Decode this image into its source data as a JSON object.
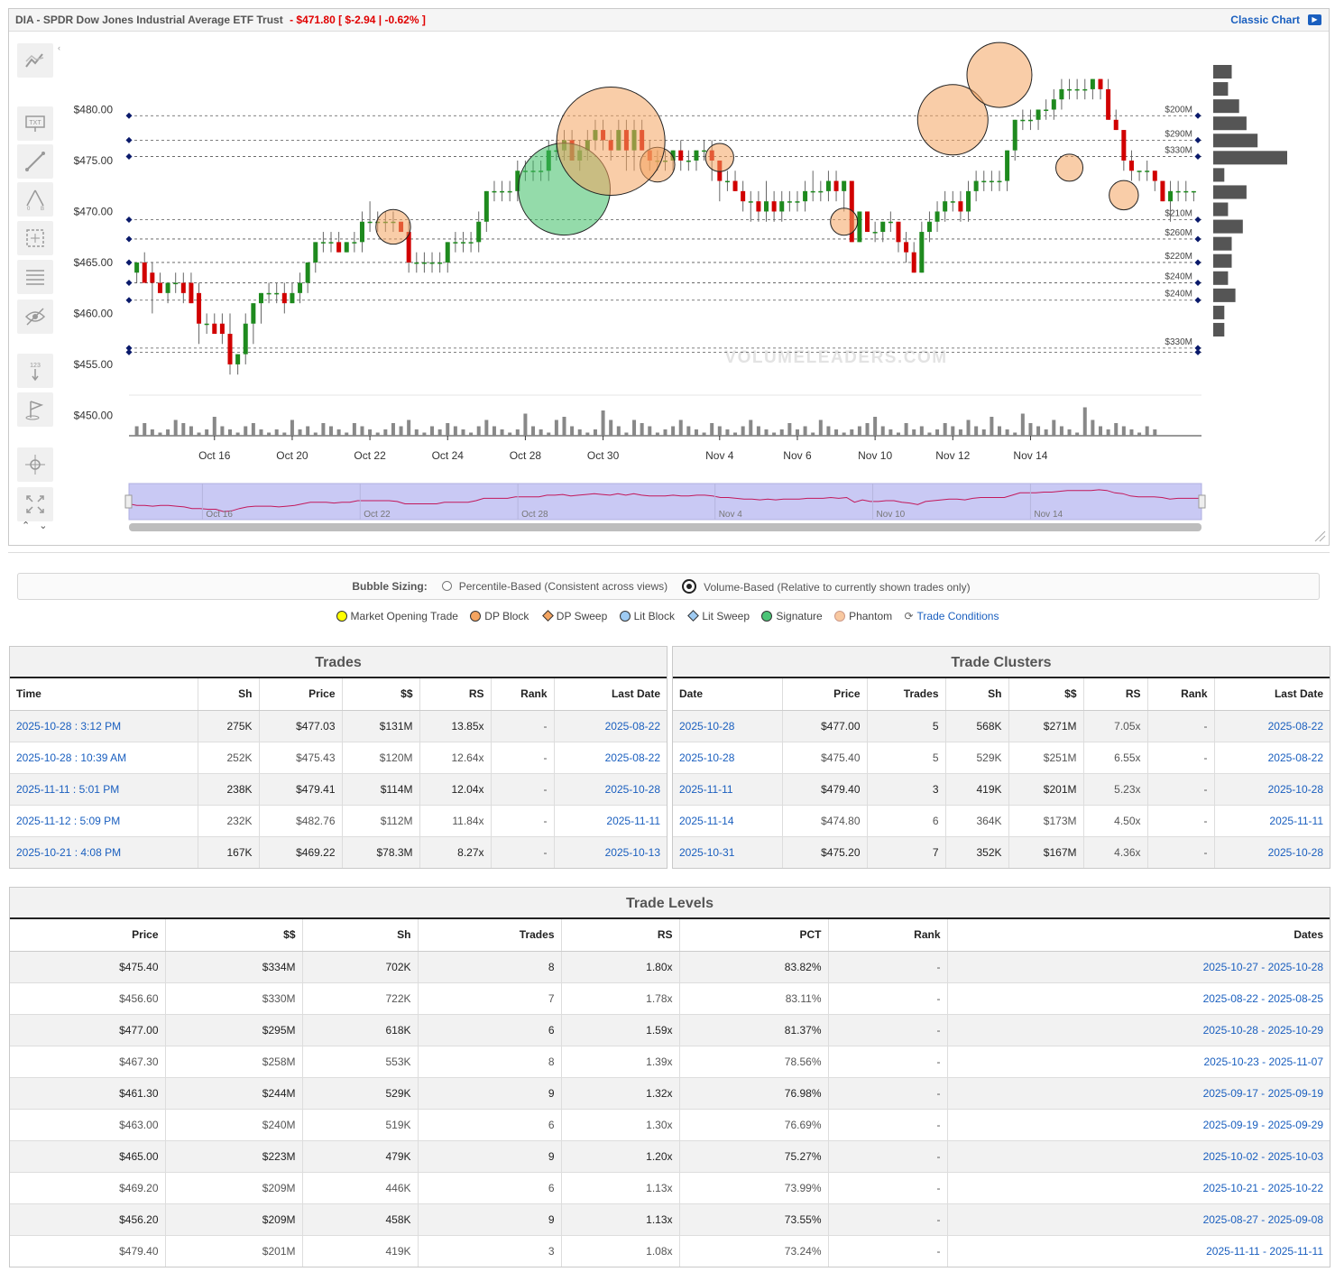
{
  "header": {
    "ticker_text": "DIA - SPDR Dow Jones Industrial Average ETF Trust",
    "quote_text": "- $471.80 [ $-2.94 | -0.62% ]",
    "classic_chart_label": "Classic Chart"
  },
  "chart_data": {
    "type": "candlestick",
    "ylim": [
      448,
      485
    ],
    "y_ticks": [
      "$480.00",
      "$475.00",
      "$470.00",
      "$465.00",
      "$460.00",
      "$455.00",
      "$450.00"
    ],
    "y_tick_values": [
      480,
      475,
      470,
      465,
      460,
      455,
      450
    ],
    "x_tick_labels": [
      "Oct 16",
      "Oct 20",
      "Oct 22",
      "Oct 24",
      "Oct 28",
      "Oct 30",
      "Nov 4",
      "Nov 6",
      "Nov 10",
      "Nov 12",
      "Nov 14"
    ],
    "x_tick_index": [
      10,
      20,
      30,
      40,
      50,
      60,
      75,
      85,
      95,
      105,
      115
    ],
    "candles": [
      [
        464,
        465,
        463,
        465
      ],
      [
        465,
        466,
        463,
        463
      ],
      [
        464,
        465,
        460,
        463
      ],
      [
        463,
        464,
        462,
        462
      ],
      [
        462,
        463,
        461,
        463
      ],
      [
        463,
        464,
        462,
        463
      ],
      [
        463,
        464,
        461,
        462
      ],
      [
        463,
        464,
        461,
        461
      ],
      [
        462,
        463,
        457,
        459
      ],
      [
        459,
        460,
        458,
        459
      ],
      [
        459,
        460,
        458,
        458
      ],
      [
        459,
        460,
        457,
        458
      ],
      [
        458,
        460,
        454,
        455
      ],
      [
        455,
        456,
        454,
        456
      ],
      [
        456,
        460,
        455,
        459
      ],
      [
        459,
        461,
        457,
        461
      ],
      [
        461,
        462,
        459,
        462
      ],
      [
        462,
        463,
        461,
        462
      ],
      [
        462,
        463,
        461,
        462
      ],
      [
        462,
        463,
        460,
        461
      ],
      [
        461,
        463,
        461,
        462
      ],
      [
        462,
        464,
        461,
        463
      ],
      [
        463,
        465,
        462,
        465
      ],
      [
        465,
        467,
        464,
        467
      ],
      [
        467,
        468,
        466,
        467
      ],
      [
        467,
        468,
        466,
        467
      ],
      [
        467,
        468,
        466,
        466
      ],
      [
        466,
        467,
        466,
        467
      ],
      [
        467,
        468,
        466,
        467
      ],
      [
        467,
        470,
        466,
        469
      ],
      [
        469,
        471,
        468,
        469
      ],
      [
        469,
        470,
        468,
        469
      ],
      [
        469,
        470,
        468,
        469
      ],
      [
        469,
        470,
        468,
        469
      ],
      [
        469,
        469,
        468,
        468
      ],
      [
        468,
        469,
        464,
        465
      ],
      [
        465,
        466,
        464,
        465
      ],
      [
        465,
        466,
        464,
        465
      ],
      [
        465,
        466,
        464,
        465
      ],
      [
        465,
        466,
        464,
        465
      ],
      [
        465,
        467,
        464,
        467
      ],
      [
        467,
        468,
        466,
        467
      ],
      [
        467,
        468,
        466,
        467
      ],
      [
        467,
        468,
        466,
        467
      ],
      [
        467,
        470,
        466,
        469
      ],
      [
        469,
        472,
        468,
        472
      ],
      [
        472,
        473,
        471,
        472
      ],
      [
        472,
        473,
        471,
        472
      ],
      [
        472,
        473,
        471,
        472
      ],
      [
        472,
        475,
        471,
        474
      ],
      [
        474,
        475,
        473,
        474
      ],
      [
        474,
        475,
        473,
        474
      ],
      [
        474,
        475,
        473,
        474
      ],
      [
        474,
        477,
        473,
        476
      ],
      [
        476,
        477,
        475,
        476
      ],
      [
        476,
        478,
        475,
        477
      ],
      [
        477,
        478,
        475,
        475
      ],
      [
        475,
        477,
        474,
        476
      ],
      [
        476,
        478,
        475,
        477
      ],
      [
        477,
        479,
        476,
        478
      ],
      [
        478,
        479,
        476,
        477
      ],
      [
        477,
        478,
        475,
        476
      ],
      [
        476,
        479,
        476,
        478
      ],
      [
        478,
        479,
        474,
        476
      ],
      [
        476,
        479,
        474,
        478
      ],
      [
        478,
        479,
        476,
        476
      ],
      [
        476,
        477,
        474,
        475
      ],
      [
        475,
        476,
        474,
        475
      ],
      [
        475,
        476,
        474,
        475
      ],
      [
        475,
        476,
        474,
        476
      ],
      [
        476,
        477,
        474,
        475
      ],
      [
        475,
        476,
        474,
        475
      ],
      [
        475,
        476,
        474,
        476
      ],
      [
        476,
        477,
        475,
        476
      ],
      [
        476,
        477,
        473,
        475
      ],
      [
        475,
        475,
        471,
        473
      ],
      [
        473,
        474,
        472,
        473
      ],
      [
        473,
        474,
        472,
        472
      ],
      [
        472,
        473,
        470,
        471
      ],
      [
        471,
        472,
        469,
        471
      ],
      [
        471,
        472,
        469,
        470
      ],
      [
        470,
        473,
        469,
        471
      ],
      [
        471,
        472,
        469,
        470
      ],
      [
        470,
        472,
        469,
        471
      ],
      [
        471,
        472,
        470,
        471
      ],
      [
        471,
        472,
        470,
        471
      ],
      [
        471,
        473,
        470,
        472
      ],
      [
        472,
        474,
        471,
        472
      ],
      [
        472,
        473,
        471,
        472
      ],
      [
        472,
        474,
        471,
        473
      ],
      [
        473,
        474,
        471,
        472
      ],
      [
        472,
        473,
        470,
        473
      ],
      [
        473,
        473,
        467,
        467
      ],
      [
        467,
        470,
        467,
        470
      ],
      [
        470,
        470,
        468,
        468
      ],
      [
        468,
        469,
        467,
        468
      ],
      [
        468,
        469,
        467,
        469
      ],
      [
        469,
        470,
        468,
        469
      ],
      [
        469,
        469,
        466,
        467
      ],
      [
        467,
        468,
        465,
        466
      ],
      [
        466,
        467,
        464,
        464
      ],
      [
        464,
        469,
        464,
        468
      ],
      [
        468,
        470,
        467,
        469
      ],
      [
        469,
        471,
        468,
        470
      ],
      [
        470,
        472,
        469,
        471
      ],
      [
        471,
        472,
        470,
        471
      ],
      [
        471,
        472,
        469,
        470
      ],
      [
        470,
        473,
        469,
        472
      ],
      [
        472,
        474,
        471,
        473
      ],
      [
        473,
        474,
        472,
        473
      ],
      [
        473,
        474,
        472,
        473
      ],
      [
        473,
        474,
        472,
        473
      ],
      [
        473,
        476,
        472,
        476
      ],
      [
        476,
        479,
        475,
        479
      ],
      [
        479,
        480,
        478,
        479
      ],
      [
        479,
        480,
        478,
        479
      ],
      [
        479,
        480,
        478,
        480
      ],
      [
        480,
        481,
        479,
        480
      ],
      [
        480,
        482,
        479,
        481
      ],
      [
        481,
        483,
        480,
        482
      ],
      [
        482,
        483,
        481,
        482
      ],
      [
        482,
        483,
        481,
        482
      ],
      [
        482,
        483,
        481,
        482
      ],
      [
        482,
        483,
        481,
        483
      ],
      [
        483,
        483,
        481,
        482
      ],
      [
        482,
        483,
        479,
        479
      ],
      [
        479,
        480,
        478,
        478
      ],
      [
        478,
        478,
        474,
        475
      ],
      [
        475,
        476,
        473,
        474
      ],
      [
        474,
        474,
        473,
        474
      ],
      [
        474,
        475,
        473,
        474
      ],
      [
        474,
        474,
        472,
        473
      ],
      [
        473,
        473,
        471,
        471
      ],
      [
        471,
        473,
        469,
        472
      ],
      [
        472,
        473,
        471,
        472
      ],
      [
        472,
        473,
        471,
        472
      ],
      [
        472,
        472,
        471,
        472
      ]
    ],
    "volume": [
      0.3,
      0.4,
      0.2,
      0.1,
      0.2,
      0.5,
      0.4,
      0.3,
      0.1,
      0.2,
      0.6,
      0.3,
      0.2,
      0.1,
      0.3,
      0.4,
      0.2,
      0.1,
      0.2,
      0.1,
      0.5,
      0.2,
      0.3,
      0.1,
      0.4,
      0.3,
      0.2,
      0.1,
      0.4,
      0.3,
      0.2,
      0.1,
      0.2,
      0.4,
      0.3,
      0.5,
      0.2,
      0.1,
      0.3,
      0.2,
      0.4,
      0.3,
      0.2,
      0.1,
      0.3,
      0.5,
      0.3,
      0.2,
      0.1,
      0.2,
      0.7,
      0.3,
      0.2,
      0.1,
      0.5,
      0.6,
      0.3,
      0.2,
      0.1,
      0.2,
      0.8,
      0.5,
      0.3,
      0.1,
      0.5,
      0.4,
      0.3,
      0.1,
      0.2,
      0.3,
      0.5,
      0.3,
      0.2,
      0.1,
      0.4,
      0.3,
      0.2,
      0.1,
      0.3,
      0.5,
      0.3,
      0.2,
      0.1,
      0.2,
      0.4,
      0.2,
      0.3,
      0.1,
      0.5,
      0.3,
      0.2,
      0.1,
      0.2,
      0.3,
      0.4,
      0.6,
      0.3,
      0.2,
      0.1,
      0.4,
      0.2,
      0.3,
      0.1,
      0.2,
      0.4,
      0.3,
      0.2,
      0.5,
      0.3,
      0.2,
      0.6,
      0.3,
      0.2,
      0.1,
      0.7,
      0.4,
      0.3,
      0.2,
      0.5,
      0.3,
      0.2,
      0.1,
      0.9,
      0.5,
      0.3,
      0.2,
      0.4,
      0.3,
      0.2,
      0.1,
      0.3,
      0.2
    ],
    "levels": [
      {
        "price": 479.4,
        "label": "$200M"
      },
      {
        "price": 477.0,
        "label": "$290M"
      },
      {
        "price": 475.4,
        "label": "$330M"
      },
      {
        "price": 469.2,
        "label": "$210M"
      },
      {
        "price": 467.3,
        "label": "$260M"
      },
      {
        "price": 465.0,
        "label": "$220M"
      },
      {
        "price": 463.0,
        "label": "$240M"
      },
      {
        "price": 461.3,
        "label": "$240M"
      },
      {
        "price": 456.6,
        "label": "$330M"
      },
      {
        "price": 456.2,
        "label": ""
      }
    ],
    "bubbles": [
      {
        "index": 33,
        "price": 468.5,
        "size": 0.32,
        "kind": "dp-block"
      },
      {
        "index": 67,
        "price": 474.6,
        "size": 0.32,
        "kind": "dp-block"
      },
      {
        "index": 75,
        "price": 475.3,
        "size": 0.26,
        "kind": "dp-block"
      },
      {
        "index": 55,
        "price": 472.2,
        "size": 0.85,
        "kind": "signature"
      },
      {
        "index": 61,
        "price": 476.9,
        "size": 1.0,
        "kind": "dp-block"
      },
      {
        "index": 105,
        "price": 479.0,
        "size": 0.65,
        "kind": "dp-block"
      },
      {
        "index": 111,
        "price": 483.4,
        "size": 0.6,
        "kind": "dp-block"
      },
      {
        "index": 91,
        "price": 469.0,
        "size": 0.25,
        "kind": "dp-block"
      },
      {
        "index": 120,
        "price": 474.3,
        "size": 0.25,
        "kind": "dp-block"
      },
      {
        "index": 127,
        "price": 471.6,
        "size": 0.27,
        "kind": "dp-block"
      }
    ],
    "volume_profile": [
      0.25,
      0.2,
      0.35,
      0.45,
      0.6,
      1.0,
      0.15,
      0.45,
      0.2,
      0.4,
      0.25,
      0.25,
      0.2,
      0.3,
      0.15,
      0.15
    ],
    "navigator_labels": [
      "Oct 16",
      "Oct 22",
      "Oct 28",
      "Nov 4",
      "Nov 10",
      "Nov 14"
    ],
    "watermark": "VOLUMELEADERS.COM"
  },
  "bubble_sizing": {
    "label": "Bubble Sizing:",
    "option1": "Percentile-Based (Consistent across views)",
    "option2": "Volume-Based (Relative to currently shown trades only)"
  },
  "legend": {
    "market_open": "Market Opening Trade",
    "dp_block": "DP Block",
    "dp_sweep": "DP Sweep",
    "lit_block": "Lit Block",
    "lit_sweep": "Lit Sweep",
    "signature": "Signature",
    "phantom": "Phantom",
    "trade_conditions": "Trade Conditions",
    "colors": {
      "market_open": "#ffff00",
      "dp_block": "#f4a460",
      "dp_sweep": "#f4a460",
      "lit_block": "#9ecbf3",
      "lit_sweep": "#9ecbf3",
      "signature": "#4cc477",
      "phantom": "#f8c8a0"
    }
  },
  "trades": {
    "title": "Trades",
    "headers": [
      "Time",
      "Sh",
      "Price",
      "$$",
      "RS",
      "Rank",
      "Last Date"
    ],
    "rows": [
      [
        "2025-10-28 : 3:12 PM",
        "275K",
        "$477.03",
        "$131M",
        "13.85x",
        "-",
        "2025-08-22"
      ],
      [
        "2025-10-28 : 10:39 AM",
        "252K",
        "$475.43",
        "$120M",
        "12.64x",
        "-",
        "2025-08-22"
      ],
      [
        "2025-11-11 : 5:01 PM",
        "238K",
        "$479.41",
        "$114M",
        "12.04x",
        "-",
        "2025-10-28"
      ],
      [
        "2025-11-12 : 5:09 PM",
        "232K",
        "$482.76",
        "$112M",
        "11.84x",
        "-",
        "2025-11-11"
      ],
      [
        "2025-10-21 : 4:08 PM",
        "167K",
        "$469.22",
        "$78.3M",
        "8.27x",
        "-",
        "2025-10-13"
      ]
    ]
  },
  "clusters": {
    "title": "Trade Clusters",
    "headers": [
      "Date",
      "Price",
      "Trades",
      "Sh",
      "$$",
      "RS",
      "Rank",
      "Last Date"
    ],
    "rows": [
      [
        "2025-10-28",
        "$477.00",
        "5",
        "568K",
        "$271M",
        "7.05x",
        "-",
        "2025-08-22"
      ],
      [
        "2025-10-28",
        "$475.40",
        "5",
        "529K",
        "$251M",
        "6.55x",
        "-",
        "2025-08-22"
      ],
      [
        "2025-11-11",
        "$479.40",
        "3",
        "419K",
        "$201M",
        "5.23x",
        "-",
        "2025-10-28"
      ],
      [
        "2025-11-14",
        "$474.80",
        "6",
        "364K",
        "$173M",
        "4.50x",
        "-",
        "2025-11-11"
      ],
      [
        "2025-10-31",
        "$475.20",
        "7",
        "352K",
        "$167M",
        "4.36x",
        "-",
        "2025-10-28"
      ]
    ]
  },
  "levels": {
    "title": "Trade Levels",
    "headers": [
      "Price",
      "$$",
      "Sh",
      "Trades",
      "RS",
      "PCT",
      "Rank",
      "Dates"
    ],
    "rows": [
      [
        "$475.40",
        "$334M",
        "702K",
        "8",
        "1.80x",
        "83.82%",
        "-",
        "2025-10-27 - 2025-10-28"
      ],
      [
        "$456.60",
        "$330M",
        "722K",
        "7",
        "1.78x",
        "83.11%",
        "-",
        "2025-08-22 - 2025-08-25"
      ],
      [
        "$477.00",
        "$295M",
        "618K",
        "6",
        "1.59x",
        "81.37%",
        "-",
        "2025-10-28 - 2025-10-29"
      ],
      [
        "$467.30",
        "$258M",
        "553K",
        "8",
        "1.39x",
        "78.56%",
        "-",
        "2025-10-23 - 2025-11-07"
      ],
      [
        "$461.30",
        "$244M",
        "529K",
        "9",
        "1.32x",
        "76.98%",
        "-",
        "2025-09-17 - 2025-09-19"
      ],
      [
        "$463.00",
        "$240M",
        "519K",
        "6",
        "1.30x",
        "76.69%",
        "-",
        "2025-09-19 - 2025-09-29"
      ],
      [
        "$465.00",
        "$223M",
        "479K",
        "9",
        "1.20x",
        "75.27%",
        "-",
        "2025-10-02 - 2025-10-03"
      ],
      [
        "$469.20",
        "$209M",
        "446K",
        "6",
        "1.13x",
        "73.99%",
        "-",
        "2025-10-21 - 2025-10-22"
      ],
      [
        "$456.20",
        "$209M",
        "458K",
        "9",
        "1.13x",
        "73.55%",
        "-",
        "2025-08-27 - 2025-09-08"
      ],
      [
        "$479.40",
        "$201M",
        "419K",
        "3",
        "1.08x",
        "73.24%",
        "-",
        "2025-11-11 - 2025-11-11"
      ]
    ]
  }
}
